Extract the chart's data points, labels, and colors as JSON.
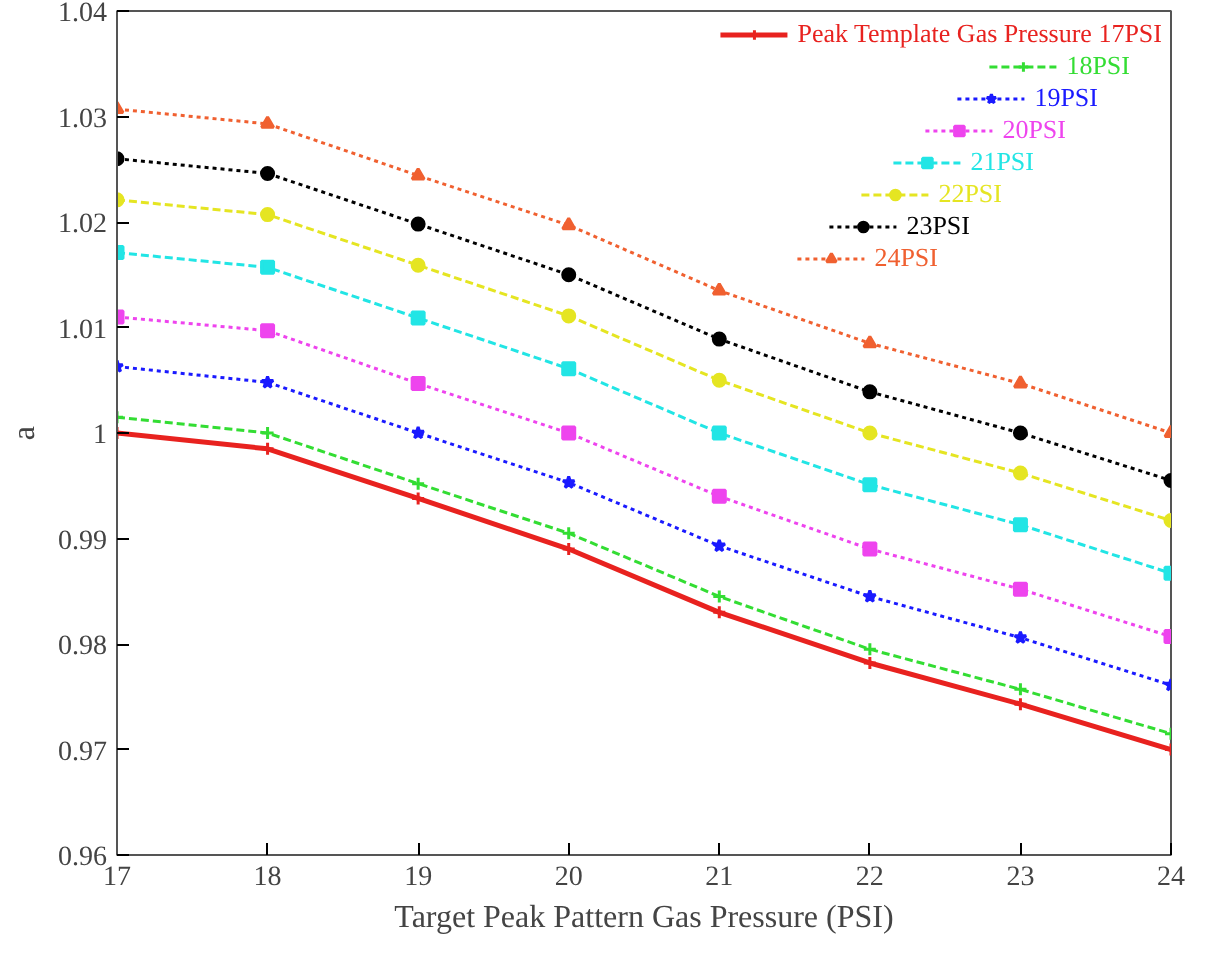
{
  "chart_data": {
    "type": "line",
    "xlabel": "Target Peak Pattern Gas Pressure (PSI)",
    "ylabel": "a",
    "x": [
      17,
      18,
      19,
      20,
      21,
      22,
      23,
      24
    ],
    "xlim": [
      17,
      24
    ],
    "xticks": [
      17,
      18,
      19,
      20,
      21,
      22,
      23,
      24
    ],
    "ylim": [
      0.96,
      1.04
    ],
    "yticks": [
      0.96,
      0.97,
      0.98,
      0.99,
      1,
      1.01,
      1.02,
      1.03,
      1.04
    ],
    "grid": false,
    "legend": "top right",
    "series": [
      {
        "name": "Peak Template Gas Pressure 17PSI",
        "color": "#e8221f",
        "marker": "cross",
        "line_style": "solid",
        "values": [
          1.0,
          0.9985,
          0.9938,
          0.989,
          0.983,
          0.9782,
          0.9743,
          0.97
        ]
      },
      {
        "name": "18PSI",
        "color": "#33dd33",
        "marker": "cross",
        "line_style": "dashed",
        "values": [
          1.0015,
          1.0,
          0.9952,
          0.9905,
          0.9845,
          0.9795,
          0.9757,
          0.9715
        ]
      },
      {
        "name": "19PSI",
        "color": "#1a1aff",
        "marker": "star",
        "line_style": "dotted",
        "values": [
          1.0063,
          1.0048,
          1.0,
          0.9953,
          0.9893,
          0.9845,
          0.9806,
          0.9761
        ]
      },
      {
        "name": "20PSI",
        "color": "#ee44ee",
        "marker": "square",
        "line_style": "dotted",
        "values": [
          1.011,
          1.0097,
          1.0047,
          1.0,
          0.994,
          0.989,
          0.9852,
          0.9807
        ]
      },
      {
        "name": "21PSI",
        "color": "#22e5e5",
        "marker": "square",
        "line_style": "dashed",
        "values": [
          1.0171,
          1.0157,
          1.0109,
          1.0061,
          1.0,
          0.9951,
          0.9913,
          0.9867
        ]
      },
      {
        "name": "22PSI",
        "color": "#e5e522",
        "marker": "circle",
        "line_style": "dashed",
        "values": [
          1.0221,
          1.0207,
          1.0159,
          1.0111,
          1.005,
          1.0,
          0.9962,
          0.9917
        ]
      },
      {
        "name": "23PSI",
        "color": "#000000",
        "marker": "circle",
        "line_style": "dotted",
        "values": [
          1.026,
          1.0246,
          1.0198,
          1.015,
          1.0089,
          1.0039,
          1.0,
          0.9955
        ]
      },
      {
        "name": "24PSI",
        "color": "#f06030",
        "marker": "triangle",
        "line_style": "dotted",
        "values": [
          1.0307,
          1.0293,
          1.0244,
          1.0197,
          1.0135,
          1.0085,
          1.0047,
          1.0
        ]
      }
    ]
  }
}
